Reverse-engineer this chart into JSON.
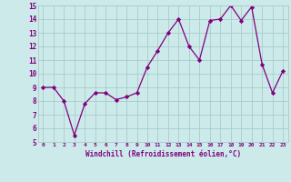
{
  "x": [
    0,
    1,
    2,
    3,
    4,
    5,
    6,
    7,
    8,
    9,
    10,
    11,
    12,
    13,
    14,
    15,
    16,
    17,
    18,
    19,
    20,
    21,
    22,
    23
  ],
  "y": [
    9.0,
    9.0,
    8.0,
    5.5,
    7.8,
    8.6,
    8.6,
    8.1,
    8.3,
    8.6,
    10.5,
    11.7,
    13.0,
    14.0,
    12.0,
    11.0,
    13.9,
    14.0,
    15.0,
    13.9,
    14.9,
    10.7,
    8.6,
    10.2
  ],
  "line_color": "#800080",
  "marker": "D",
  "marker_size": 2.2,
  "bg_color": "#cceaea",
  "grid_color": "#aacccc",
  "xlabel": "Windchill (Refroidissement éolien,°C)",
  "xlabel_color": "#800080",
  "tick_color": "#800080",
  "xlim": [
    -0.5,
    23.5
  ],
  "ylim": [
    5,
    15
  ],
  "yticks": [
    5,
    6,
    7,
    8,
    9,
    10,
    11,
    12,
    13,
    14,
    15
  ],
  "xticks": [
    0,
    1,
    2,
    3,
    4,
    5,
    6,
    7,
    8,
    9,
    10,
    11,
    12,
    13,
    14,
    15,
    16,
    17,
    18,
    19,
    20,
    21,
    22,
    23
  ]
}
